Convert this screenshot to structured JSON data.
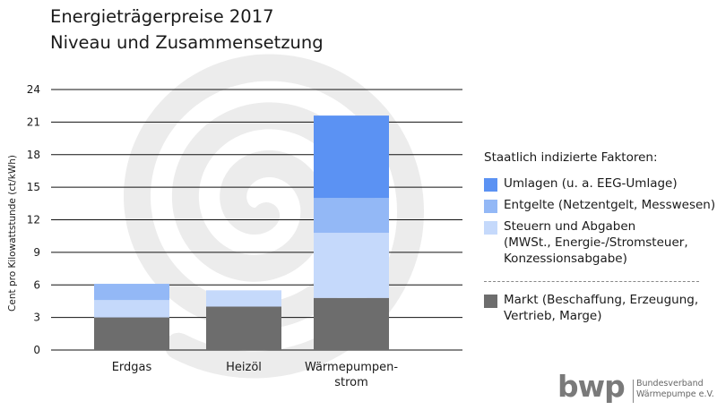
{
  "title_line1": "Energieträgerpreise 2017",
  "title_line2": "Niveau und Zusammensetzung",
  "chart_data": {
    "type": "bar",
    "stacked": true,
    "categories": [
      "Erdgas",
      "Heizöl",
      "Wärmepumpen-\nstrom"
    ],
    "ylabel": "Cent pro Kilowattstunde (ct/kWh)",
    "ylim": [
      0,
      24
    ],
    "yticks": [
      0,
      3,
      6,
      9,
      12,
      15,
      18,
      21,
      24
    ],
    "grid": true,
    "series": [
      {
        "name": "Markt (Beschaffung, Erzeugung, Vertrieb, Marge)",
        "values": [
          3.0,
          4.0,
          4.8
        ],
        "color": "#6d6d6d"
      },
      {
        "name": "Steuern und Abgaben (MWSt., Energie-/Stromsteuer, Konzessionsabgabe)",
        "values": [
          1.6,
          1.5,
          6.0
        ],
        "color": "#c5d9fb"
      },
      {
        "name": "Entgelte (Netzentgelt, Messwesen)",
        "values": [
          1.5,
          0.0,
          3.2
        ],
        "color": "#93b8f6"
      },
      {
        "name": "Umlagen (u. a. EEG-Umlage)",
        "values": [
          0.0,
          0.0,
          7.6
        ],
        "color": "#5b92f3"
      }
    ]
  },
  "legend": {
    "heading": "Staatlich indizierte Faktoren:",
    "items": [
      {
        "label": "Umlagen (u. a. EEG-Umlage)",
        "color": "#5b92f3"
      },
      {
        "label": "Entgelte (Netzentgelt, Messwesen)",
        "color": "#93b8f6"
      },
      {
        "label": "Steuern und Abgaben\n(MWSt., Energie-/Stromsteuer,\nKonzessionsabgabe)",
        "color": "#c5d9fb"
      },
      {
        "label": "Markt (Beschaffung, Erzeugung,\nVertrieb, Marge)",
        "color": "#6d6d6d"
      }
    ]
  },
  "logo": {
    "mark": "bwp",
    "text": "Bundesverband\nWärmepumpe e.V."
  },
  "colors": {
    "background_spiral": "#ececec",
    "grid": "#111111",
    "text": "#1a1a1a"
  }
}
